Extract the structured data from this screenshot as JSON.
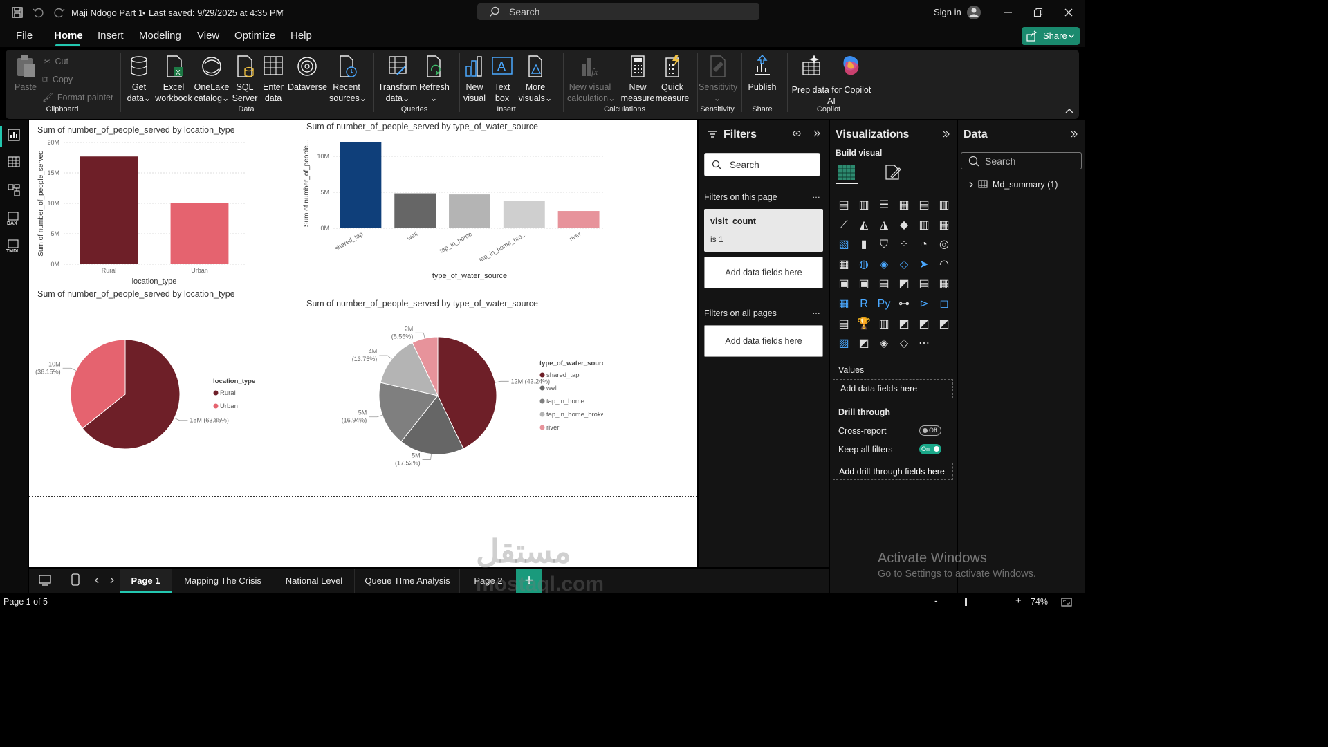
{
  "titlebar": {
    "doc_title": "Maji Ndogo Part 1",
    "saved": "Last saved: 9/29/2025 at 4:35 PM",
    "search": "Search",
    "sign_in": "Sign in"
  },
  "menu": {
    "items": [
      "File",
      "Home",
      "Insert",
      "Modeling",
      "View",
      "Optimize",
      "Help"
    ],
    "active": "Home",
    "share": "Share"
  },
  "ribbon": {
    "paste": "Paste",
    "cut": "Cut",
    "copy": "Copy",
    "format_painter": "Format painter",
    "clipboard": "Clipboard",
    "get_data": [
      "Get",
      "data"
    ],
    "excel": [
      "Excel",
      "workbook"
    ],
    "onelake": [
      "OneLake",
      "catalog"
    ],
    "sql": [
      "SQL",
      "Server"
    ],
    "enter": [
      "Enter",
      "data"
    ],
    "dataverse": "Dataverse",
    "recent": [
      "Recent",
      "sources"
    ],
    "data_group": "Data",
    "transform": [
      "Transform",
      "data"
    ],
    "refresh": "Refresh",
    "queries": "Queries",
    "new_visual": [
      "New",
      "visual"
    ],
    "text_box": [
      "Text",
      "box"
    ],
    "more_visuals": [
      "More",
      "visuals"
    ],
    "insert": "Insert",
    "new_calc": [
      "New visual",
      "calculation"
    ],
    "new_measure": [
      "New",
      "measure"
    ],
    "quick_measure": [
      "Quick",
      "measure"
    ],
    "calculations": "Calculations",
    "sensitivity": "Sensitivity",
    "sensitivity_group": "Sensitivity",
    "publish": "Publish",
    "share_group": "Share",
    "prep": [
      "Prep data for Copilot",
      "AI"
    ],
    "copilot_group": "Copilot"
  },
  "chart_data": [
    {
      "type": "bar",
      "title": "Sum of number_of_people_served by location_type",
      "xlabel": "location_type",
      "ylabel": "Sum of number_of_people_served",
      "categories": [
        "Rural",
        "Urban"
      ],
      "values": [
        17700000,
        10000000
      ],
      "yticks": [
        "0M",
        "5M",
        "10M",
        "15M",
        "20M"
      ],
      "ylim": [
        0,
        20000000
      ],
      "colors": [
        "#6e1f28",
        "#e5636f"
      ]
    },
    {
      "type": "bar",
      "title": "Sum of number_of_people_served by type_of_water_source",
      "xlabel": "type_of_water_source",
      "ylabel": "Sum of number_of_people...",
      "categories": [
        "shared_tap",
        "well",
        "tap_in_home",
        "tap_in_home_bro...",
        "river"
      ],
      "values": [
        12000000,
        4850000,
        4700000,
        3800000,
        2400000
      ],
      "yticks": [
        "0M",
        "5M",
        "10M"
      ],
      "ylim": [
        0,
        12500000
      ],
      "colors": [
        "#0f3f7a",
        "#666666",
        "#b4b4b4",
        "#cfcfcf",
        "#e7939b"
      ]
    },
    {
      "type": "pie",
      "title": "Sum of number_of_people_served by location_type",
      "legend_title": "location_type",
      "slices": [
        {
          "name": "Rural",
          "value": 18,
          "label": "18M (63.85%)",
          "color": "#6e1f28"
        },
        {
          "name": "Urban",
          "value": 10,
          "label": "10M (36.15%)",
          "color": "#e5636f"
        }
      ]
    },
    {
      "type": "pie",
      "title": "Sum of number_of_people_served by type_of_water_source",
      "legend_title": "type_of_water_source",
      "slices": [
        {
          "name": "shared_tap",
          "value": 12,
          "label": "12M (43.24%)",
          "color": "#6e1f28"
        },
        {
          "name": "well",
          "value": 5,
          "label": "5M (17.52%)",
          "color": "#666666"
        },
        {
          "name": "tap_in_home",
          "value": 5,
          "label": "5M (16.94%)",
          "color": "#7f7f7f"
        },
        {
          "name": "tap_in_home_broken",
          "value": 4,
          "label": "4M (13.75%)",
          "color": "#b4b4b4"
        },
        {
          "name": "river",
          "value": 2,
          "label": "2M (8.55%)",
          "color": "#e7939b"
        }
      ]
    }
  ],
  "filters": {
    "title": "Filters",
    "search": "Search",
    "on_page": "Filters on this page",
    "card_field": "visit_count",
    "card_value": "is 1",
    "add_fields": "Add data fields here",
    "all_pages": "Filters on all pages",
    "add_fields2": "Add data fields here"
  },
  "viz": {
    "title": "Visualizations",
    "build": "Build visual",
    "values": "Values",
    "add_values": "Add data fields here",
    "drill": "Drill through",
    "cross": "Cross-report",
    "cross_state": "Off",
    "keep": "Keep all filters",
    "keep_state": "On",
    "add_drill": "Add drill-through fields here"
  },
  "data": {
    "title": "Data",
    "search": "Search",
    "table": "Md_summary (1)"
  },
  "pages": {
    "tabs": [
      "Page 1",
      "Mapping The Crisis",
      "National Level",
      "Queue TIme Analysis",
      "Page 2"
    ],
    "active": "Page 1"
  },
  "status": {
    "page": "Page 1 of 5",
    "zoom": "74%"
  },
  "watermark": {
    "line1": "Activate Windows",
    "line2": "Go to Settings to activate Windows.",
    "site": "mostaql.com",
    "arabic": "مستقل"
  }
}
